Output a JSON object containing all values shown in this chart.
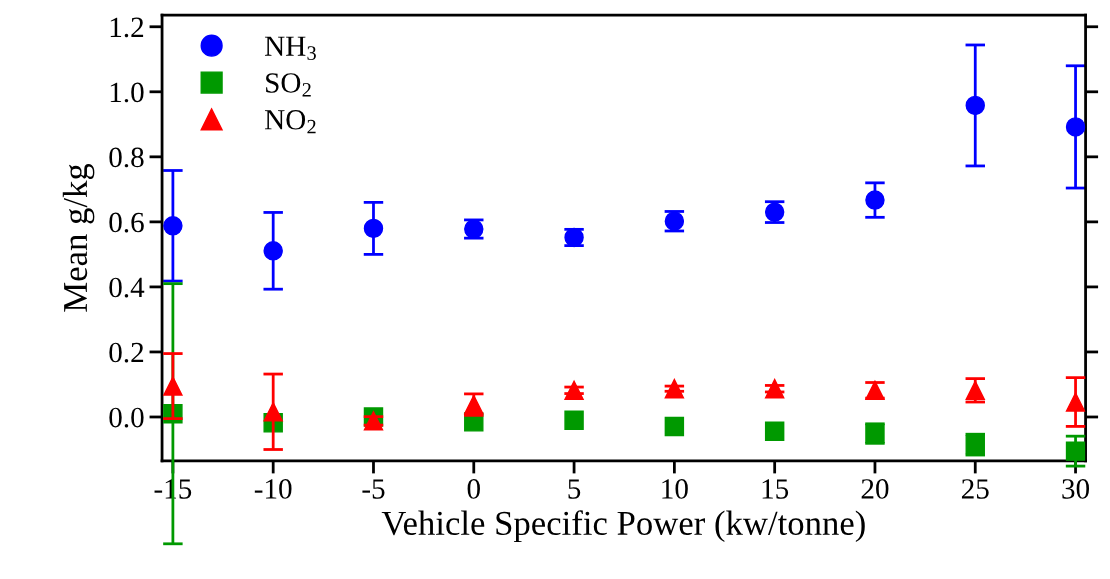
{
  "chart_data": {
    "type": "scatter",
    "xlabel": "Vehicle Specific Power (kw/tonne)",
    "ylabel": "Mean g/kg",
    "x": [
      -15,
      -10,
      -5,
      0,
      5,
      10,
      15,
      20,
      25,
      30
    ],
    "series": [
      {
        "name": "NH$_{3}$",
        "color": "#0000ff",
        "marker": "circle",
        "values": [
          0.588,
          0.511,
          0.58,
          0.578,
          0.552,
          0.602,
          0.63,
          0.667,
          0.958,
          0.892
        ],
        "errors": [
          0.17,
          0.118,
          0.08,
          0.028,
          0.025,
          0.03,
          0.032,
          0.053,
          0.186,
          0.188
        ]
      },
      {
        "name": "SO$_{2}$",
        "color": "#009900",
        "marker": "square",
        "values": [
          0.01,
          -0.018,
          0.0,
          -0.015,
          -0.01,
          -0.029,
          -0.044,
          -0.051,
          -0.085,
          -0.105
        ],
        "errors": [
          0.4,
          null,
          null,
          null,
          null,
          null,
          null,
          0.03,
          0.032,
          0.046
        ]
      },
      {
        "name": "NO$_{2}$",
        "color": "#ff0000",
        "marker": "triangle",
        "values": [
          0.095,
          0.016,
          -0.012,
          0.038,
          0.082,
          0.087,
          0.087,
          0.082,
          0.082,
          0.046
        ],
        "errors": [
          0.1,
          0.116,
          0.013,
          0.033,
          0.01,
          0.008,
          0.01,
          0.024,
          0.036,
          0.075
        ]
      }
    ],
    "xlim": [
      -15.54,
      30.5
    ],
    "xticks": [
      -15,
      -10,
      -5,
      0,
      5,
      10,
      15,
      20,
      25,
      30
    ],
    "ylim": [
      -0.135,
      1.236
    ],
    "yticks": [
      {
        "value": 0,
        "label": "0.0"
      },
      0.2,
      0.4,
      0.6,
      0.8,
      {
        "value": 1,
        "label": "1.0"
      },
      1.2
    ],
    "grid": false,
    "legend": "top left"
  }
}
